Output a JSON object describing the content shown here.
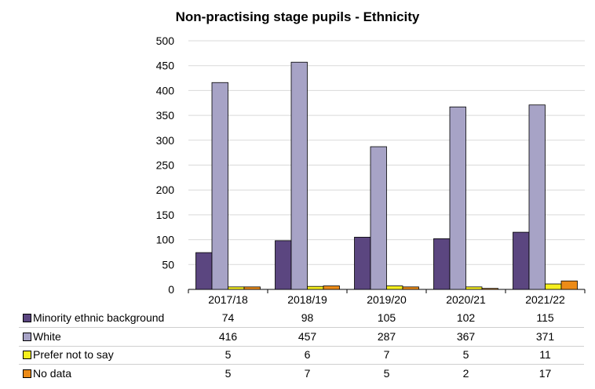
{
  "chart_data": {
    "type": "bar",
    "title": "Non-practising stage pupils - Ethnicity",
    "categories": [
      "2017/18",
      "2018/19",
      "2019/20",
      "2020/21",
      "2021/22"
    ],
    "ylim": [
      0,
      500
    ],
    "yticks": [
      0,
      50,
      100,
      150,
      200,
      250,
      300,
      350,
      400,
      450,
      500
    ],
    "grid": true,
    "legend": "data-table-below",
    "series": [
      {
        "name": "Minority ethnic background",
        "color": "#5b4680",
        "values": [
          74,
          98,
          105,
          102,
          115
        ]
      },
      {
        "name": "White",
        "color": "#a7a3c6",
        "values": [
          416,
          457,
          287,
          367,
          371
        ]
      },
      {
        "name": "Prefer not to say",
        "color": "#f6ef1e",
        "values": [
          5,
          6,
          7,
          5,
          11
        ]
      },
      {
        "name": "No data",
        "color": "#ec8b18",
        "values": [
          5,
          7,
          5,
          2,
          17
        ]
      }
    ]
  }
}
